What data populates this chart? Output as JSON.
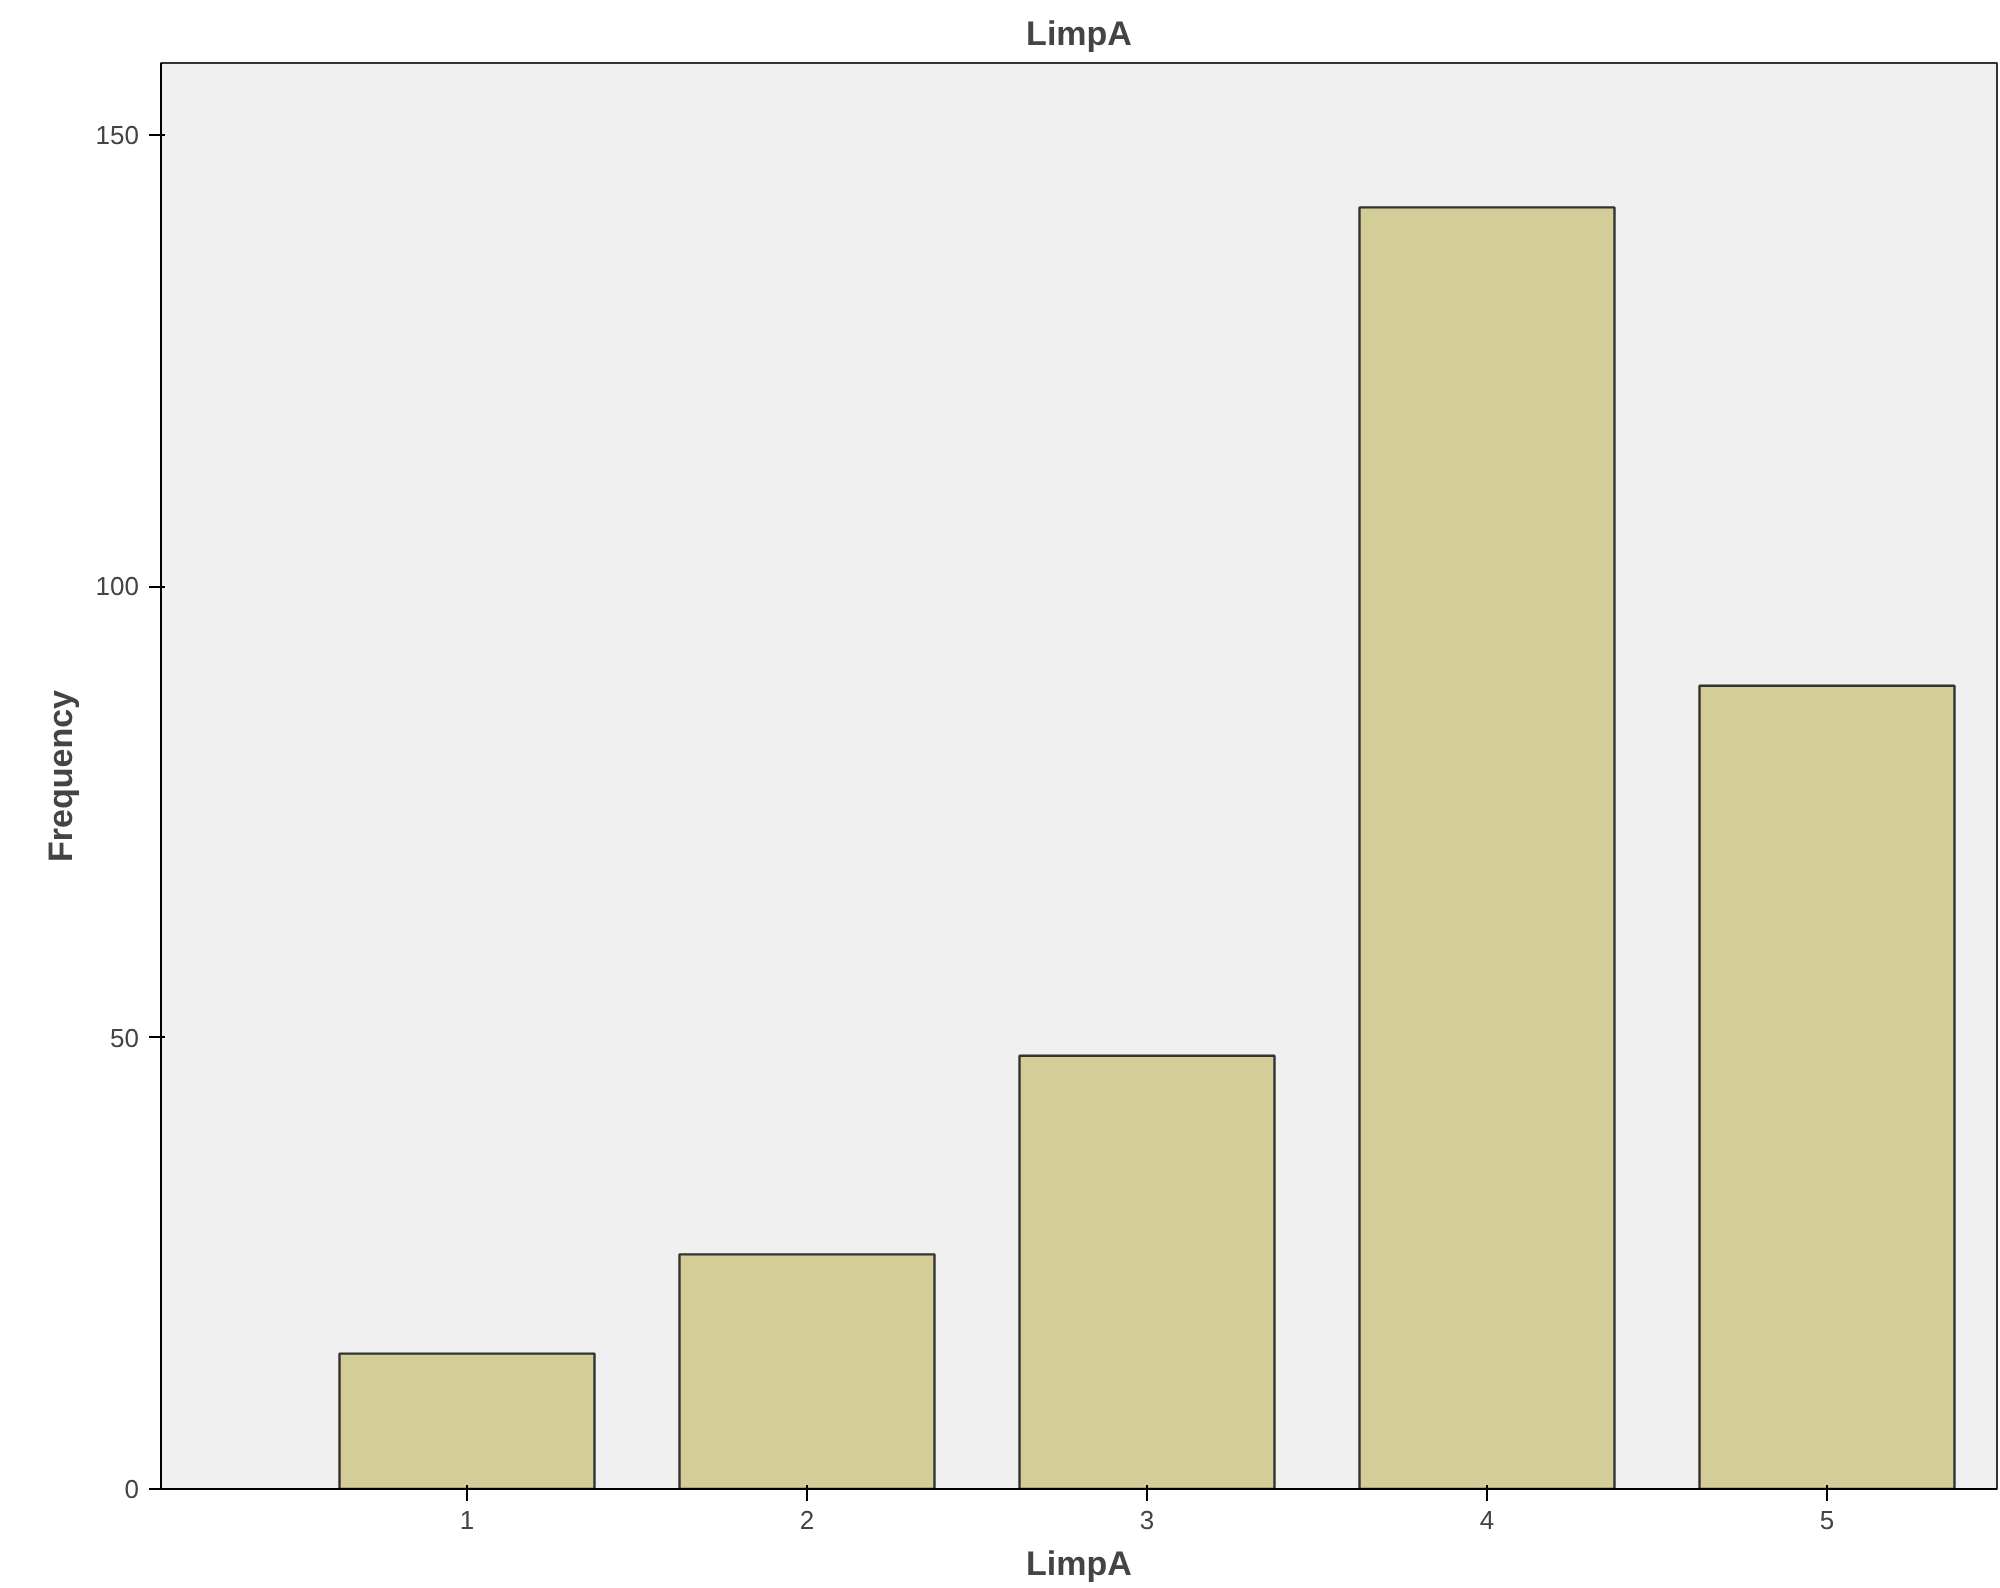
{
  "chart_data": {
    "type": "bar",
    "title": "LimpA",
    "xlabel": "LimpA",
    "ylabel": "Frequency",
    "categories": [
      "1",
      "2",
      "3",
      "4",
      "5"
    ],
    "values": [
      15,
      26,
      48,
      142,
      89
    ],
    "color": "#d3cd98",
    "ylim": [
      0,
      158
    ],
    "yticks": [
      0,
      50,
      100,
      150
    ],
    "grid": false
  }
}
